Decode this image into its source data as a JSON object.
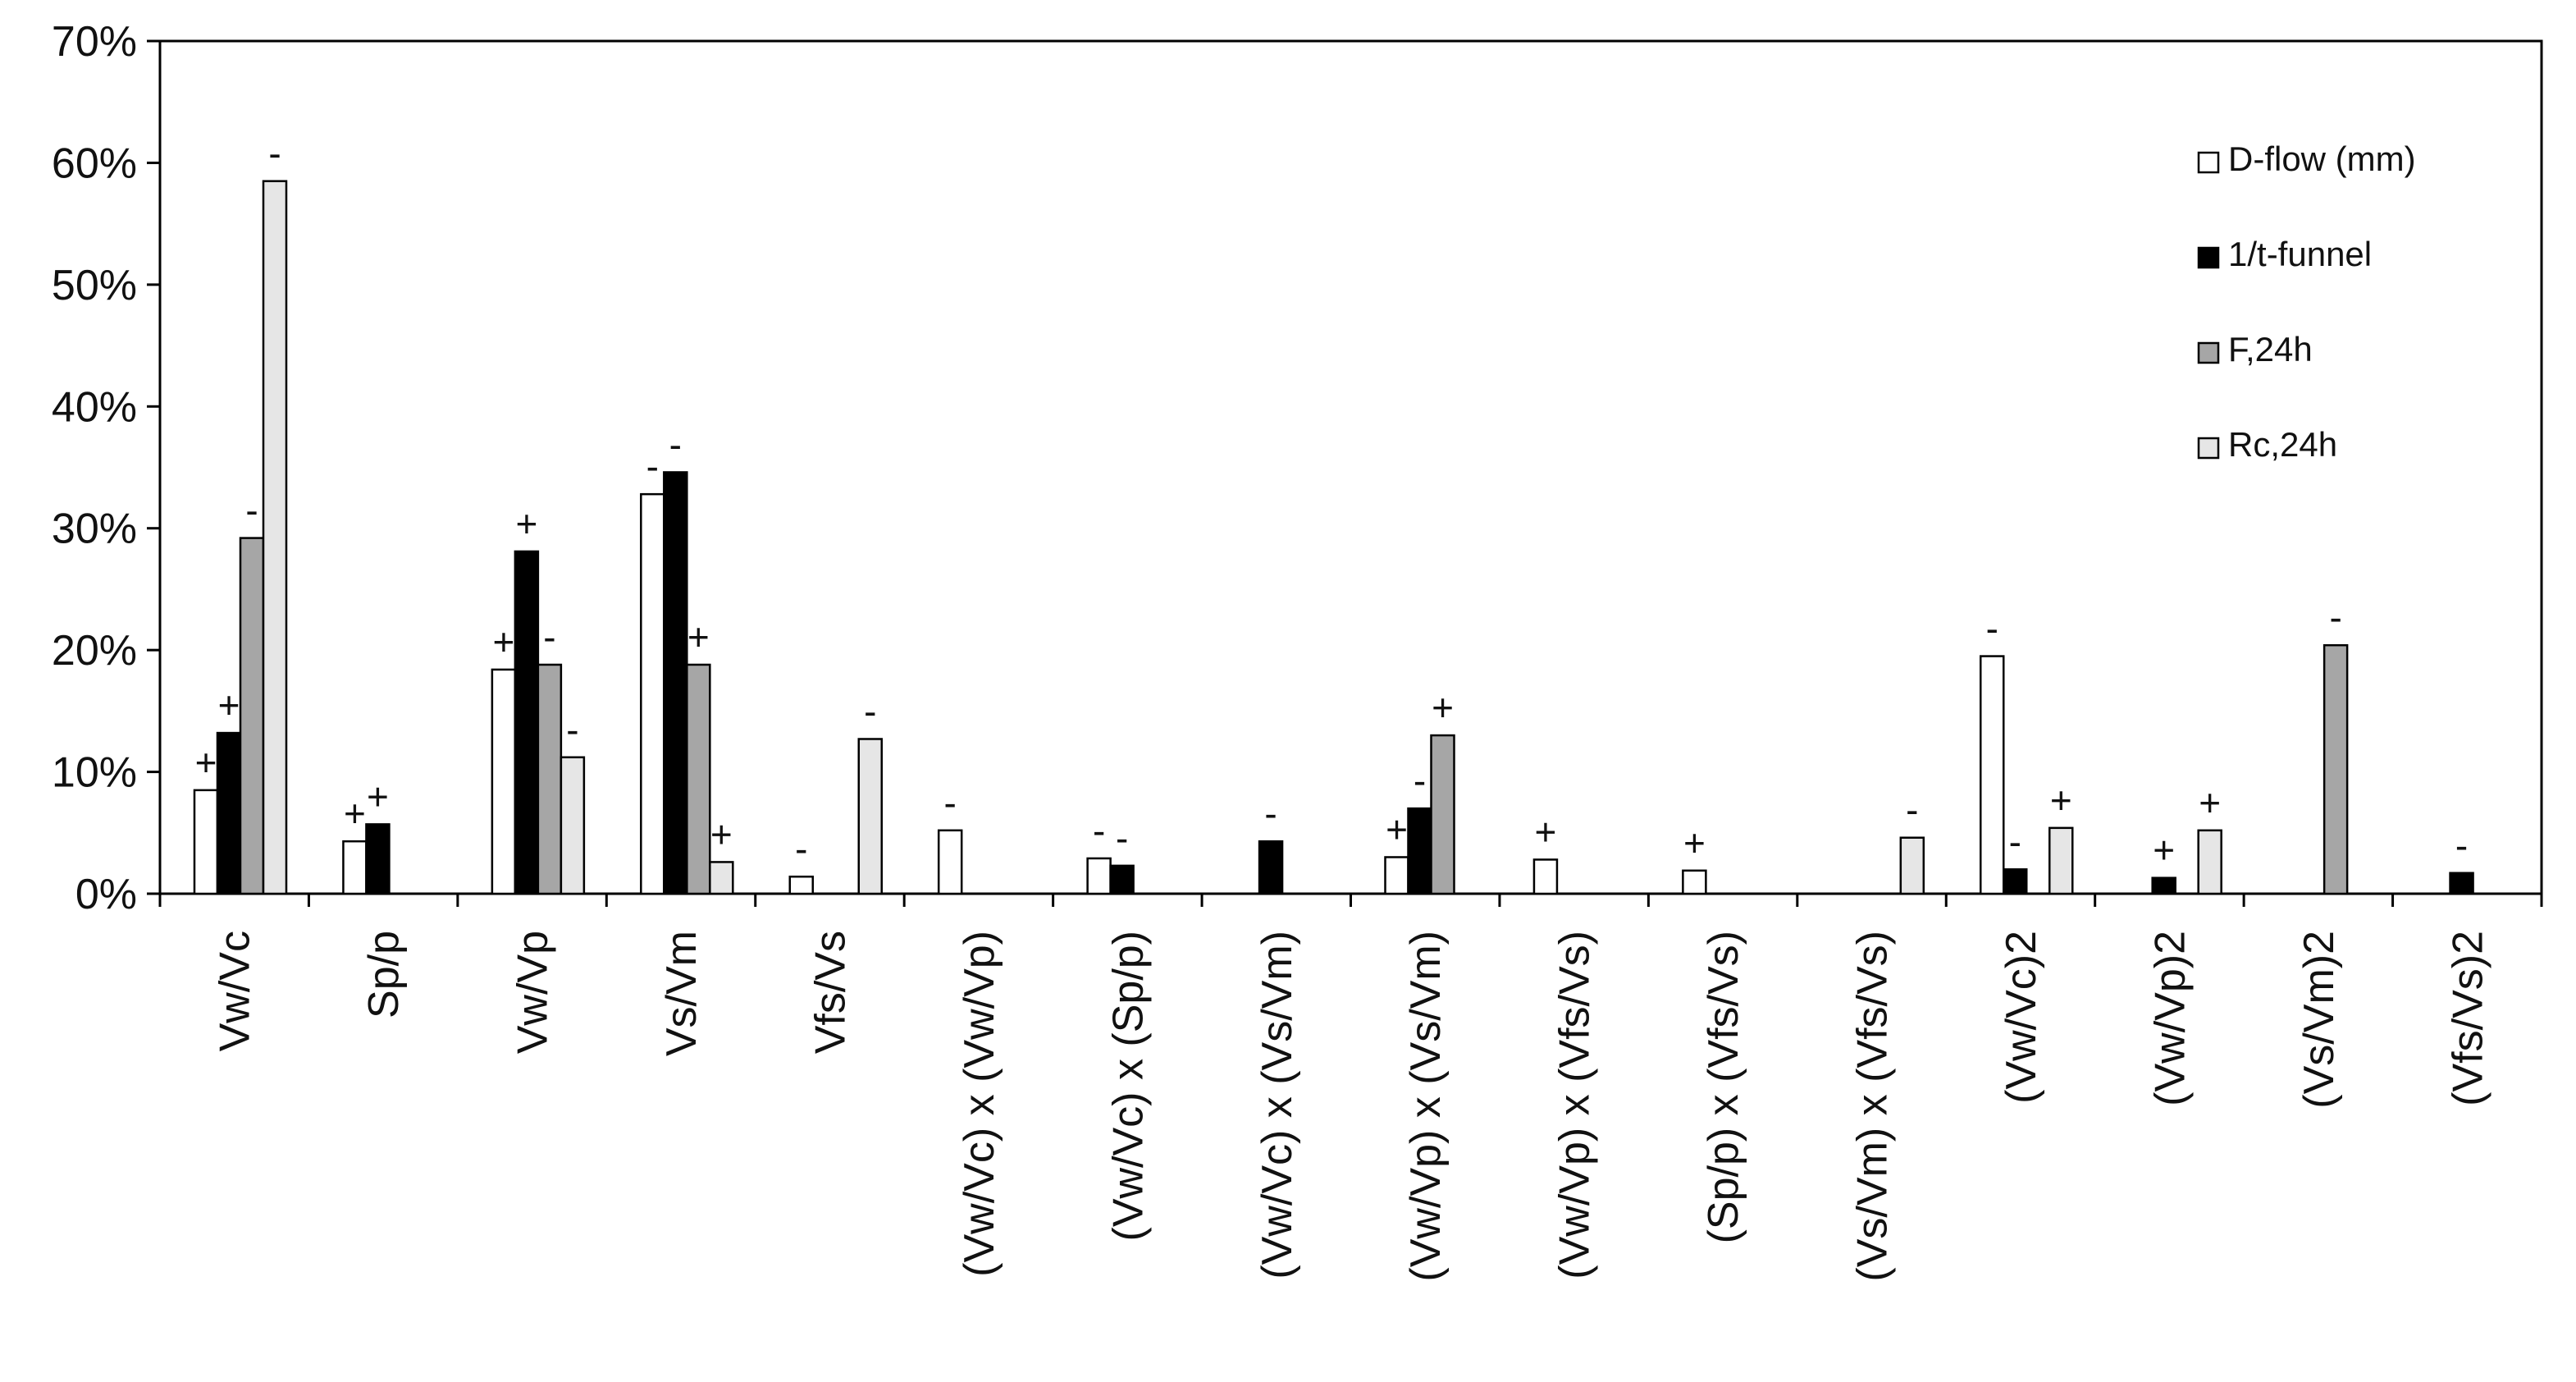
{
  "chart_data": {
    "type": "bar",
    "categories": [
      "Vw/Vc",
      "Sp/p",
      "Vw/Vp",
      "Vs/Vm",
      "Vfs/Vs",
      "(Vw/Vc) x (Vw/Vp)",
      "(Vw/Vc) x (Sp/p)",
      "(Vw/Vc) x (Vs/Vm)",
      "(Vw/Vp) x (Vs/Vm)",
      "(Vw/Vp) x (Vfs/Vs)",
      "(Sp/p) x (Vfs/Vs)",
      "(Vs/Vm) x (Vfs/Vs)",
      "(Vw/Vc)2",
      "(Vw/Vp)2",
      "(Vs/Vm)2",
      "(Vfs/Vs)2"
    ],
    "series": [
      {
        "name": "D-flow (mm)",
        "color": "#ffffff",
        "values": [
          8.5,
          4.3,
          18.4,
          32.8,
          1.4,
          5.2,
          2.9,
          0,
          3.0,
          2.8,
          1.9,
          0,
          19.5,
          0,
          0,
          0
        ],
        "signs": [
          "+",
          "+",
          "+",
          "-",
          "-",
          "-",
          "-",
          "",
          "+",
          "+",
          "+",
          "",
          "-",
          "",
          "",
          ""
        ]
      },
      {
        "name": "1/t-funnel",
        "color": "#000000",
        "values": [
          13.2,
          5.7,
          28.1,
          34.6,
          0,
          0,
          2.3,
          4.3,
          7.0,
          0,
          0,
          0,
          2.0,
          1.3,
          0,
          1.7
        ],
        "signs": [
          "+",
          "+",
          "+",
          "-",
          "",
          "",
          "-",
          "-",
          "-",
          "",
          "",
          "",
          "-",
          "+",
          "",
          "-"
        ]
      },
      {
        "name": "F,24h",
        "color": "#a6a6a6",
        "values": [
          29.2,
          0,
          18.8,
          18.8,
          0,
          0,
          0,
          0,
          13.0,
          0,
          0,
          0,
          0,
          0,
          20.4,
          0
        ],
        "signs": [
          "-",
          "",
          "-",
          "+",
          "",
          "",
          "",
          "",
          "+",
          "",
          "",
          "",
          "",
          "",
          "-",
          ""
        ]
      },
      {
        "name": "Rc,24h",
        "color": "#e6e6e6",
        "values": [
          58.5,
          0,
          11.2,
          2.6,
          12.7,
          0,
          0,
          0,
          0,
          0,
          0,
          4.6,
          5.4,
          5.2,
          0,
          0
        ],
        "signs": [
          "-",
          "",
          "-",
          "+",
          "-",
          "",
          "",
          "",
          "",
          "",
          "",
          "-",
          "+",
          "+",
          "",
          ""
        ]
      }
    ],
    "yticks": [
      "0%",
      "10%",
      "20%",
      "30%",
      "40%",
      "50%",
      "60%",
      "70%"
    ],
    "ylim": [
      0,
      70
    ],
    "legend": {
      "position": "top-right",
      "entries": [
        "D-flow (mm)",
        "1/t-funnel",
        "F,24h",
        "Rc,24h"
      ]
    },
    "grid": false
  }
}
